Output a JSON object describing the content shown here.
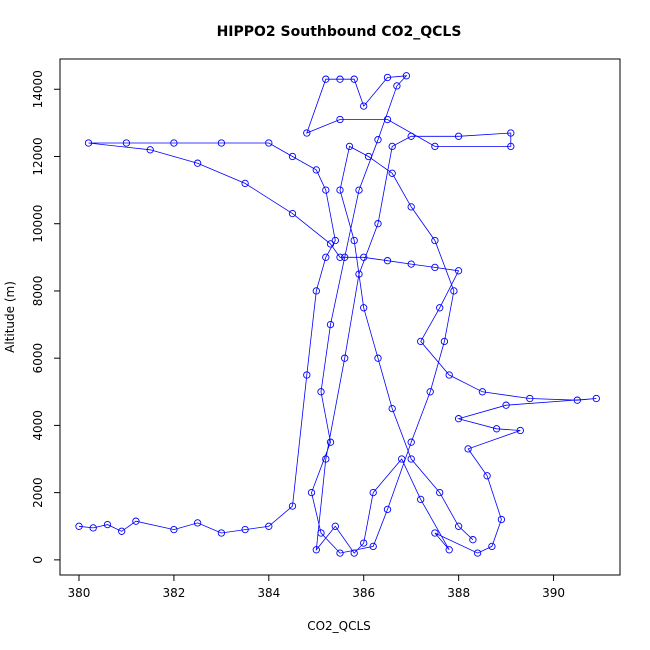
{
  "chart_data": {
    "type": "scatter",
    "title": "HIPPO2 Southbound CO2_QCLS",
    "xlabel": "CO2_QCLS",
    "ylabel": "Altitude (m)",
    "xlim": [
      379.6,
      391.4
    ],
    "ylim": [
      -450,
      14900
    ],
    "xticks": [
      380,
      382,
      384,
      386,
      388,
      390
    ],
    "yticks": [
      0,
      2000,
      4000,
      6000,
      8000,
      10000,
      12000,
      14000
    ],
    "grid": false,
    "legend": "none",
    "series": [
      {
        "color": "#0000ff",
        "marker": "open-circle",
        "connected": true,
        "points": [
          [
            380.0,
            1000
          ],
          [
            380.3,
            950
          ],
          [
            380.6,
            1050
          ],
          [
            380.9,
            850
          ],
          [
            381.2,
            1150
          ],
          [
            382.0,
            900
          ],
          [
            382.5,
            1100
          ],
          [
            383.0,
            800
          ],
          [
            383.5,
            900
          ],
          [
            384.0,
            1000
          ],
          [
            384.5,
            1600
          ],
          [
            384.8,
            5500
          ],
          [
            385.0,
            8000
          ],
          [
            385.2,
            9000
          ],
          [
            385.4,
            9500
          ],
          [
            385.2,
            11000
          ],
          [
            385.0,
            11600
          ],
          [
            384.5,
            12000
          ],
          [
            384.0,
            12400
          ],
          [
            383.0,
            12400
          ],
          [
            382.0,
            12400
          ],
          [
            381.0,
            12400
          ],
          [
            380.2,
            12400
          ],
          [
            381.5,
            12200
          ],
          [
            382.5,
            11800
          ],
          [
            383.5,
            11200
          ],
          [
            384.5,
            10300
          ],
          [
            385.3,
            9400
          ],
          [
            385.5,
            9000
          ],
          [
            386.0,
            9000
          ],
          [
            386.5,
            8900
          ],
          [
            387.0,
            8800
          ],
          [
            387.5,
            8700
          ],
          [
            388.0,
            8600
          ],
          [
            387.6,
            7500
          ],
          [
            387.2,
            6500
          ],
          [
            387.8,
            5500
          ],
          [
            388.5,
            5000
          ],
          [
            389.5,
            4800
          ],
          [
            390.5,
            4750
          ],
          [
            390.9,
            4800
          ],
          [
            389.0,
            4600
          ],
          [
            388.0,
            4200
          ],
          [
            388.8,
            3900
          ],
          [
            389.3,
            3850
          ],
          [
            388.2,
            3300
          ],
          [
            388.6,
            2500
          ],
          [
            388.9,
            1200
          ],
          [
            388.7,
            400
          ],
          [
            388.4,
            200
          ],
          [
            387.5,
            800
          ],
          [
            387.8,
            300
          ],
          [
            387.2,
            1800
          ],
          [
            386.8,
            3000
          ],
          [
            386.2,
            2000
          ],
          [
            386.0,
            500
          ],
          [
            385.8,
            200
          ],
          [
            385.4,
            1000
          ],
          [
            385.0,
            300
          ],
          [
            385.2,
            3000
          ],
          [
            385.6,
            6000
          ],
          [
            385.9,
            8500
          ],
          [
            386.3,
            10000
          ],
          [
            386.6,
            12300
          ],
          [
            387.0,
            12600
          ],
          [
            388.0,
            12600
          ],
          [
            389.1,
            12700
          ],
          [
            389.1,
            12300
          ],
          [
            387.5,
            12300
          ],
          [
            386.5,
            13100
          ],
          [
            385.5,
            13100
          ],
          [
            384.8,
            12700
          ],
          [
            385.2,
            14300
          ],
          [
            385.5,
            14300
          ],
          [
            385.8,
            14300
          ],
          [
            386.0,
            13500
          ],
          [
            386.5,
            14350
          ],
          [
            386.9,
            14400
          ],
          [
            386.7,
            14100
          ],
          [
            386.3,
            12500
          ],
          [
            385.9,
            11000
          ],
          [
            385.6,
            9000
          ],
          [
            385.3,
            7000
          ],
          [
            385.1,
            5000
          ],
          [
            385.3,
            3500
          ],
          [
            384.9,
            2000
          ],
          [
            385.1,
            800
          ],
          [
            385.5,
            200
          ],
          [
            386.2,
            400
          ],
          [
            386.5,
            1500
          ],
          [
            387.0,
            3500
          ],
          [
            387.4,
            5000
          ],
          [
            387.7,
            6500
          ],
          [
            387.9,
            8000
          ],
          [
            387.5,
            9500
          ],
          [
            387.0,
            10500
          ],
          [
            386.6,
            11500
          ],
          [
            386.1,
            12000
          ],
          [
            385.7,
            12300
          ],
          [
            385.5,
            11000
          ],
          [
            385.8,
            9500
          ],
          [
            386.0,
            7500
          ],
          [
            386.3,
            6000
          ],
          [
            386.6,
            4500
          ],
          [
            387.0,
            3000
          ],
          [
            387.6,
            2000
          ],
          [
            388.0,
            1000
          ],
          [
            388.3,
            600
          ]
        ]
      }
    ]
  }
}
